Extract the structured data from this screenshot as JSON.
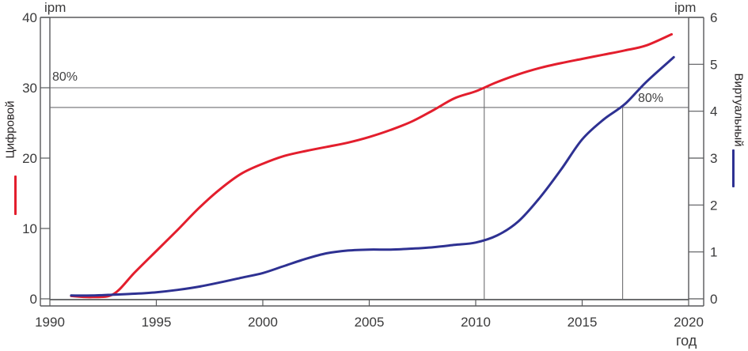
{
  "labels": {
    "unit_left": "ipm",
    "unit_right": "ipm",
    "axis_left_title": "Цифровой",
    "axis_right_title": "Виртуальный",
    "xaxis_title": "год",
    "annotation_digital": "80%",
    "annotation_virtual": "80%"
  },
  "colors": {
    "digital": "#e31e2d",
    "virtual": "#2e3192",
    "frame": "#58595b",
    "guide": "#6d6e71",
    "tick_text": "#3a3a3b"
  },
  "chart_data": {
    "type": "line",
    "title": "",
    "xlabel": "год",
    "x_ticks": [
      1990,
      1995,
      2000,
      2005,
      2010,
      2015,
      2020
    ],
    "xlim": [
      1990,
      2020
    ],
    "grid": false,
    "left_axis": {
      "title": "Цифровой",
      "unit": "ipm",
      "ticks": [
        0,
        10,
        20,
        30,
        40
      ],
      "lim": [
        0,
        40
      ]
    },
    "right_axis": {
      "title": "Виртуальный",
      "unit": "ipm",
      "ticks": [
        0,
        1,
        2,
        3,
        4,
        5,
        6
      ],
      "lim": [
        0,
        6
      ]
    },
    "series": [
      {
        "name": "Цифровой",
        "axis": "left",
        "color": "#e31e2d",
        "x": [
          1991,
          1992,
          1993,
          1994,
          1995,
          1996,
          1997,
          1998,
          1999,
          2000,
          2001,
          2002,
          2003,
          2004,
          2005,
          2006,
          2007,
          2008,
          2009,
          2010,
          2011,
          2012,
          2013,
          2014,
          2015,
          2016,
          2017,
          2018,
          2019.2
        ],
        "values": [
          0.4,
          0.25,
          0.7,
          3.8,
          6.8,
          9.8,
          12.9,
          15.6,
          17.8,
          19.2,
          20.3,
          21.0,
          21.6,
          22.2,
          23.0,
          24.0,
          25.2,
          26.8,
          28.5,
          29.5,
          30.8,
          31.9,
          32.8,
          33.5,
          34.1,
          34.7,
          35.3,
          36.0,
          37.6
        ]
      },
      {
        "name": "Виртуальный",
        "axis": "right",
        "color": "#2e3192",
        "x": [
          1991,
          1992,
          1993,
          1994,
          1995,
          1996,
          1997,
          1998,
          1999,
          2000,
          2001,
          2002,
          2003,
          2004,
          2005,
          2006,
          2007,
          2008,
          2009,
          2010,
          2011,
          2012,
          2013,
          2014,
          2015,
          2016,
          2017,
          2018,
          2019.3
        ],
        "values": [
          0.07,
          0.07,
          0.09,
          0.11,
          0.14,
          0.19,
          0.26,
          0.35,
          0.45,
          0.55,
          0.7,
          0.85,
          0.97,
          1.03,
          1.05,
          1.05,
          1.07,
          1.1,
          1.15,
          1.2,
          1.35,
          1.65,
          2.15,
          2.75,
          3.4,
          3.82,
          4.15,
          4.62,
          5.15
        ]
      }
    ],
    "guides": {
      "hlines": [
        {
          "axis": "left",
          "value": 30,
          "label": "80%"
        },
        {
          "axis": "right",
          "value": 4.08,
          "label": "80%"
        }
      ],
      "vlines": [
        {
          "year": 2010.4,
          "drops_from_hline": 0
        },
        {
          "year": 2016.9,
          "drops_from_hline": 1
        }
      ]
    },
    "legend_position": "outside-left and outside-right vertical color bars"
  }
}
